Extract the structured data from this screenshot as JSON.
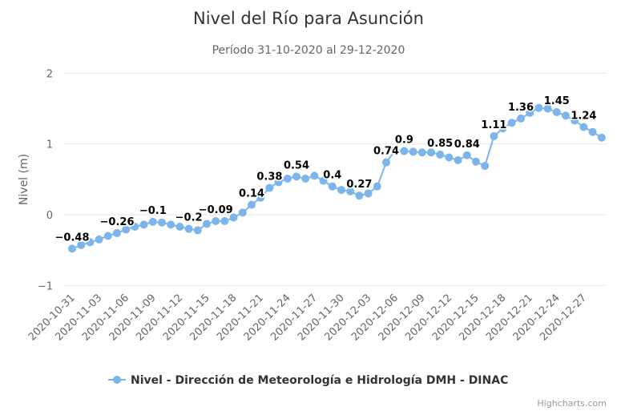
{
  "chart_data": {
    "type": "line",
    "title": "Nivel del Río para Asunción",
    "subtitle": "Período 31-10-2020 al 29-12-2020",
    "xlabel": "",
    "ylabel": "Nivel (m)",
    "ylim": [
      -1,
      2
    ],
    "yticks": [
      -1,
      0,
      1,
      2
    ],
    "ytick_labels": [
      "−1",
      "0",
      "1",
      "2"
    ],
    "grid": true,
    "start_date": "2020-10-31",
    "xtick_labels": [
      "2020-10-31",
      "2020-11-03",
      "2020-11-06",
      "2020-11-09",
      "2020-11-12",
      "2020-11-15",
      "2020-11-18",
      "2020-11-21",
      "2020-11-24",
      "2020-11-27",
      "2020-11-30",
      "2020-12-03",
      "2020-12-06",
      "2020-12-09",
      "2020-12-12",
      "2020-12-15",
      "2020-12-18",
      "2020-12-21",
      "2020-12-24",
      "2020-12-27"
    ],
    "series": [
      {
        "name": "Nivel - Dirección de Meteorología e Hidrología DMH - DINAC",
        "color": "#7cb5ec",
        "values": [
          -0.48,
          -0.43,
          -0.39,
          -0.35,
          -0.3,
          -0.26,
          -0.21,
          -0.17,
          -0.14,
          -0.1,
          -0.11,
          -0.14,
          -0.17,
          -0.2,
          -0.22,
          -0.13,
          -0.09,
          -0.09,
          -0.04,
          0.03,
          0.14,
          0.24,
          0.38,
          0.46,
          0.51,
          0.54,
          0.51,
          0.55,
          0.48,
          0.4,
          0.35,
          0.33,
          0.27,
          0.3,
          0.4,
          0.74,
          0.91,
          0.9,
          0.89,
          0.88,
          0.88,
          0.85,
          0.81,
          0.77,
          0.84,
          0.75,
          0.69,
          1.11,
          1.22,
          1.3,
          1.36,
          1.44,
          1.51,
          1.5,
          1.45,
          1.4,
          1.33,
          1.24,
          1.17,
          1.09
        ],
        "labeled_indices": [
          0,
          5,
          9,
          13,
          16,
          20,
          22,
          25,
          29,
          32,
          35,
          37,
          41,
          44,
          47,
          50,
          54,
          57
        ]
      }
    ],
    "legend": "bottom-center",
    "credits": "Highcharts.com"
  }
}
